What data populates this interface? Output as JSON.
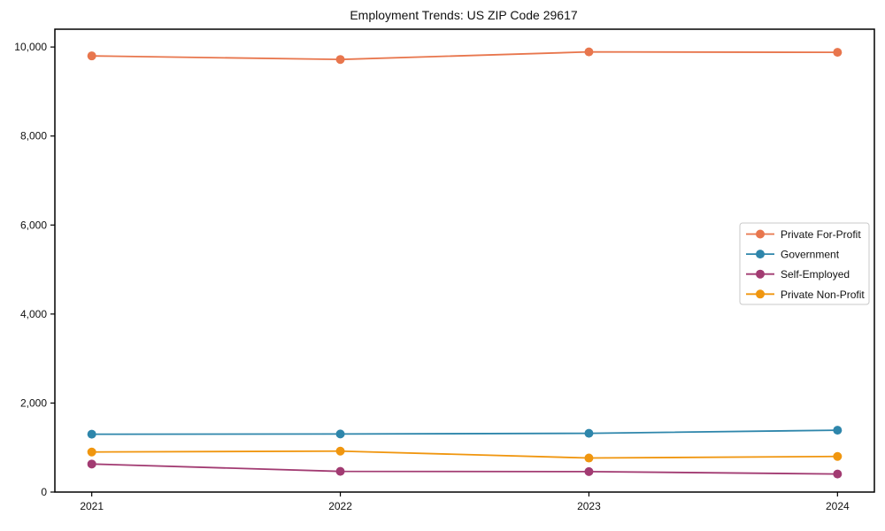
{
  "chart_data": {
    "type": "line",
    "title": "Employment Trends: US ZIP Code 29617",
    "x": [
      "2021",
      "2022",
      "2023",
      "2024"
    ],
    "series": [
      {
        "name": "Private For-Profit",
        "color": "#e8764d",
        "values": [
          9800,
          9720,
          9890,
          9880
        ]
      },
      {
        "name": "Government",
        "color": "#2e86ab",
        "values": [
          1300,
          1305,
          1320,
          1390
        ]
      },
      {
        "name": "Self-Employed",
        "color": "#a23b72",
        "values": [
          630,
          465,
          460,
          405
        ]
      },
      {
        "name": "Private Non-Profit",
        "color": "#f0960f",
        "values": [
          900,
          920,
          765,
          800
        ]
      }
    ],
    "xlabel": "",
    "ylabel": "",
    "ylim": [
      0,
      10400
    ],
    "yticks": [
      0,
      2000,
      4000,
      6000,
      8000,
      10000
    ],
    "ytick_labels": [
      "0",
      "2,000",
      "4,000",
      "6,000",
      "8,000",
      "10,000"
    ],
    "grid": false,
    "marker": "circle",
    "legend_position": "center-right",
    "colors": {
      "frame": "#000000",
      "background": "#ffffff",
      "legend_border": "#c9c9c9",
      "legend_background": "#ffffff",
      "text": "#111111"
    }
  }
}
